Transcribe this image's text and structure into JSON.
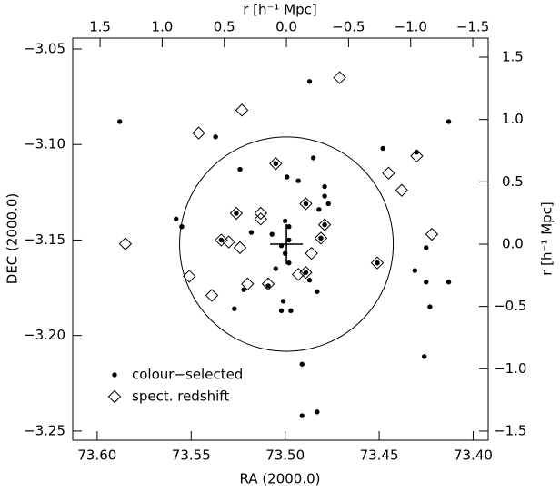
{
  "chart_data": {
    "type": "scatter",
    "xlabel": "RA (2000.0)",
    "ylabel": "DEC (2000.0)",
    "x2label": "r [h⁻¹ Mpc]",
    "y2label": "r [h⁻¹ Mpc]",
    "xlim": [
      73.613,
      73.392
    ],
    "ylim": [
      -3.2548,
      -3.0443
    ],
    "xticks": [
      {
        "value": 73.6,
        "label": "73.60"
      },
      {
        "value": 73.55,
        "label": "73.55"
      },
      {
        "value": 73.5,
        "label": "73.50"
      },
      {
        "value": 73.45,
        "label": "73.45"
      },
      {
        "value": 73.4,
        "label": "73.40"
      }
    ],
    "yticks": [
      {
        "value": -3.05,
        "label": "−3.05"
      },
      {
        "value": -3.1,
        "label": "−3.10"
      },
      {
        "value": -3.15,
        "label": "−3.15"
      },
      {
        "value": -3.2,
        "label": "−3.20"
      },
      {
        "value": -3.25,
        "label": "−3.25"
      }
    ],
    "x2lim": [
      1.72,
      -1.624
    ],
    "y2lim": [
      -1.573,
      1.653
    ],
    "x2ticks": [
      1.5,
      {
        "value": 1.0,
        "label": "1.0"
      },
      0.5,
      {
        "value": 0.0,
        "label": "0.0"
      },
      {
        "value": -0.5,
        "label": "−0.5"
      },
      {
        "value": -1.0,
        "label": "−1.0"
      },
      {
        "value": -1.5,
        "label": "−1.5"
      }
    ],
    "y2ticks": [
      1.5,
      {
        "value": 1.0,
        "label": "1.0"
      },
      0.5,
      {
        "value": 0.0,
        "label": "0.0"
      },
      {
        "value": -0.5,
        "label": "−0.5"
      },
      {
        "value": -1.0,
        "label": "−1.0"
      },
      {
        "value": -1.5,
        "label": "−1.5"
      }
    ],
    "circle": {
      "center": [
        0,
        0
      ],
      "radius": 0.86
    },
    "legend": "lower left",
    "series": [
      {
        "name": "colour−selected",
        "marker": "dot",
        "color": "#000000",
        "x": [
          73.588,
          73.537,
          73.487,
          73.413,
          73.448,
          73.43,
          73.524,
          73.499,
          73.485,
          73.493,
          73.479,
          73.479,
          73.477,
          73.482,
          73.558,
          73.555,
          73.5,
          73.498,
          73.507,
          73.498,
          73.502,
          73.5,
          73.498,
          73.505,
          73.487,
          73.483,
          73.425,
          73.425,
          73.431,
          73.522,
          73.509,
          73.501,
          73.502,
          73.497,
          73.527,
          73.413,
          73.423,
          73.426,
          73.491,
          73.483,
          73.491,
          73.526,
          73.505,
          73.489,
          73.479,
          73.518,
          73.534,
          73.481,
          73.451,
          73.489
        ],
        "values": [
          -3.088,
          -3.096,
          -3.067,
          -3.088,
          -3.102,
          -3.104,
          -3.113,
          -3.117,
          -3.107,
          -3.119,
          -3.122,
          -3.127,
          -3.131,
          -3.134,
          -3.139,
          -3.143,
          -3.14,
          -3.143,
          -3.147,
          -3.15,
          -3.153,
          -3.157,
          -3.162,
          -3.165,
          -3.171,
          -3.177,
          -3.154,
          -3.172,
          -3.166,
          -3.176,
          -3.174,
          -3.182,
          -3.187,
          -3.187,
          -3.186,
          -3.172,
          -3.185,
          -3.211,
          -3.215,
          -3.24,
          -3.242,
          -3.136,
          -3.11,
          -3.131,
          -3.142,
          -3.146,
          -3.15,
          -3.149,
          -3.162,
          -3.167
        ]
      },
      {
        "name": "spect. redshift",
        "marker": "diamond",
        "color": "#000000",
        "x": [
          73.471,
          73.523,
          73.546,
          73.505,
          73.445,
          73.438,
          73.43,
          73.489,
          73.526,
          73.513,
          73.513,
          73.479,
          73.422,
          73.534,
          73.53,
          73.524,
          73.481,
          73.486,
          73.451,
          73.551,
          73.539,
          73.52,
          73.509,
          73.489,
          73.493,
          73.585
        ],
        "values": [
          -3.065,
          -3.082,
          -3.094,
          -3.11,
          -3.115,
          -3.124,
          -3.106,
          -3.131,
          -3.136,
          -3.136,
          -3.139,
          -3.142,
          -3.147,
          -3.15,
          -3.151,
          -3.154,
          -3.149,
          -3.157,
          -3.162,
          -3.169,
          -3.179,
          -3.173,
          -3.173,
          -3.167,
          -3.168,
          -3.152
        ]
      }
    ]
  }
}
